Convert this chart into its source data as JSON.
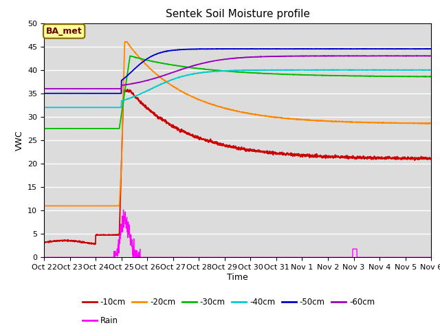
{
  "title": "Sentek Soil Moisture profile",
  "xlabel": "Time",
  "ylabel": "VWC",
  "ylim": [
    0,
    50
  ],
  "xlim": [
    0,
    360
  ],
  "annotation": "BA_met",
  "bg_color": "#dcdcdc",
  "x_tick_labels": [
    "Oct 22",
    "Oct 23",
    "Oct 24",
    "Oct 25",
    "Oct 26",
    "Oct 27",
    "Oct 28",
    "Oct 29",
    "Oct 30",
    "Oct 31",
    "Nov 1",
    "Nov 2",
    "Nov 3",
    "Nov 4",
    "Nov 5",
    "Nov 6"
  ],
  "x_tick_positions": [
    0,
    24,
    48,
    72,
    96,
    120,
    144,
    168,
    192,
    216,
    240,
    264,
    288,
    312,
    336,
    360
  ],
  "yticks": [
    0,
    5,
    10,
    15,
    20,
    25,
    30,
    35,
    40,
    45,
    50
  ],
  "series_colors": {
    "10cm": "#cc0000",
    "20cm": "#ff8800",
    "30cm": "#00bb00",
    "40cm": "#00cccc",
    "50cm": "#0000cc",
    "60cm": "#9900bb",
    "rain": "#ff00ff"
  },
  "legend_labels": [
    "-10cm",
    "-20cm",
    "-30cm",
    "-40cm",
    "-50cm",
    "-60cm",
    "Rain"
  ]
}
